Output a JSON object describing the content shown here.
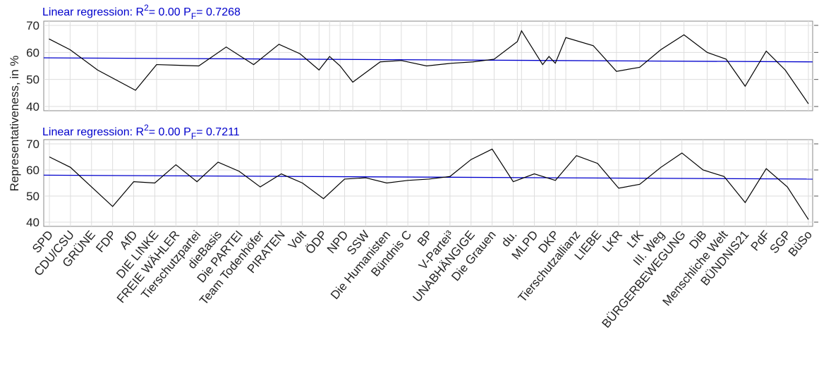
{
  "chart_data": [
    {
      "type": "line",
      "annotation": {
        "text": "Linear regression: R",
        "sup": "2",
        "mid": "= 0.00  P",
        "sub": "F",
        "end": "= 0.7268"
      },
      "x": [
        0,
        1.0,
        2.3,
        4.1,
        5.1,
        7.1,
        8.4,
        9.7,
        10.9,
        11.9,
        12.8,
        13.3,
        13.8,
        14.4,
        15.7,
        16.7,
        17.9,
        19.1,
        20.1,
        21.1,
        22.2,
        22.4,
        23.4,
        23.7,
        24.0,
        24.5,
        25.8,
        26.9,
        28.0,
        29.0,
        30.1,
        31.2,
        32.1,
        33.0,
        34.0,
        34.9,
        36
      ],
      "xlim": [
        -0.25,
        36.2
      ],
      "series": [
        {
          "color": "#000000",
          "values": [
            65,
            61,
            53.5,
            46,
            55.5,
            55,
            62,
            55.5,
            63,
            59.5,
            53.5,
            58.5,
            55,
            49,
            56.5,
            57,
            55,
            56,
            56.5,
            57.5,
            64,
            68,
            55.5,
            58.5,
            56,
            65.5,
            62.5,
            53,
            54.5,
            61,
            66.5,
            60,
            57.5,
            47.5,
            60.5,
            53.5,
            41
          ]
        }
      ],
      "regression": {
        "color": "#0000cc",
        "values": [
          58,
          56.5
        ]
      },
      "ylim": [
        40,
        70
      ],
      "yticks": [
        40,
        50,
        60,
        70
      ],
      "grid": true
    },
    {
      "type": "line",
      "annotation": {
        "text": "Linear regression: R",
        "sup": "2",
        "mid": "= 0.00  P",
        "sub": "F",
        "end": "= 0.7211"
      },
      "y_label": "Representativeness, in %",
      "categories": [
        "SPD",
        "CDU/CSU",
        "GRÜNE",
        "FDP",
        "AfD",
        "DIE LINKE",
        "FREIE WÄHLER",
        "Tierschutzpartei",
        "dieBasis",
        "Die PARTEI",
        "Team Todenhöfer",
        "PIRATEN",
        "Volt",
        "ÖDP",
        "NPD",
        "SSW",
        "Die Humanisten",
        "Bündnis C",
        "BP",
        "V-Partei³",
        "UNABHÄNGIGE",
        "Die Grauen",
        "du.",
        "MLPD",
        "DKP",
        "Tierschutzallianz",
        "LIEBE",
        "LKR",
        "LfK",
        "III. Weg",
        "BÜRGERBEWEGUNG",
        "DiB",
        "Menschliche Welt",
        "BÜNDNIS21",
        "PdF",
        "SGP",
        "BüSo"
      ],
      "series": [
        {
          "color": "#000000",
          "values": [
            65,
            61,
            53.5,
            46,
            55.5,
            55,
            62,
            55.5,
            63,
            59.5,
            53.5,
            58.5,
            55,
            49,
            56.5,
            57,
            55,
            56,
            56.5,
            57.5,
            64,
            68,
            55.5,
            58.5,
            56,
            65.5,
            62.5,
            53,
            54.5,
            61,
            66.5,
            60,
            57.5,
            47.5,
            60.5,
            53.5,
            41
          ]
        }
      ],
      "regression": {
        "color": "#0000cc",
        "values": [
          58,
          56.5
        ]
      },
      "ylim": [
        40,
        70
      ],
      "yticks": [
        40,
        50,
        60,
        70
      ],
      "grid": true
    }
  ]
}
